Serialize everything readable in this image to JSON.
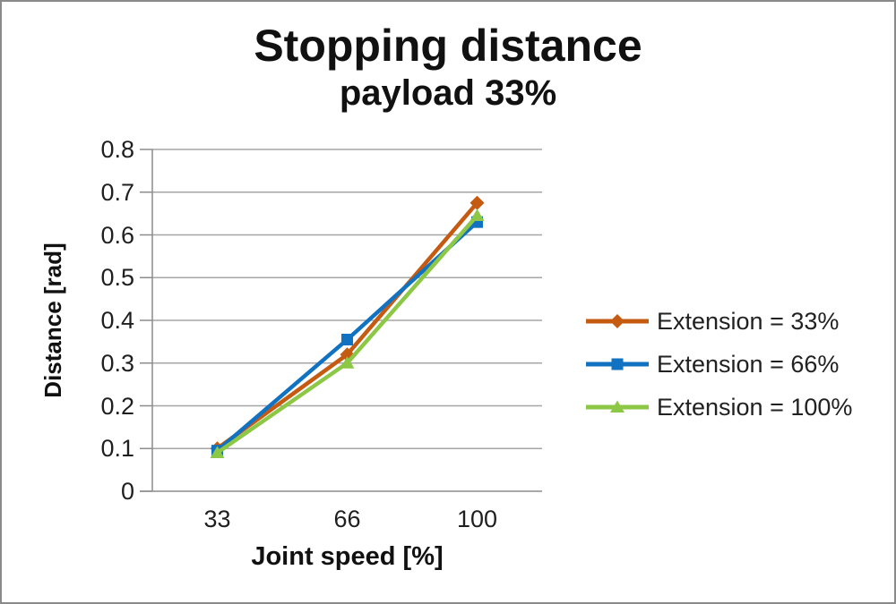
{
  "window": {
    "background": "#ffffff",
    "border_color": "#8a8a8a"
  },
  "chart_data": {
    "type": "line",
    "title": "Stopping distance",
    "subtitle": "payload 33%",
    "xlabel": "Joint speed [%]",
    "ylabel": "Distance [rad]",
    "categories": [
      33,
      66,
      100
    ],
    "x_tick_labels": [
      "33",
      "66",
      "100"
    ],
    "y_tick_labels": [
      "0",
      "0.1",
      "0.2",
      "0.3",
      "0.4",
      "0.5",
      "0.6",
      "0.7",
      "0.8"
    ],
    "ylim": [
      0,
      0.8
    ],
    "y_step": 0.1,
    "grid": "horizontal-only",
    "legend_position": "right",
    "series": [
      {
        "name": "Extension = 33%",
        "marker": "diamond",
        "color": "#c55a11",
        "values": [
          0.1,
          0.32,
          0.675
        ]
      },
      {
        "name": "Extension = 66%",
        "marker": "square",
        "color": "#1272c2",
        "values": [
          0.095,
          0.355,
          0.63
        ]
      },
      {
        "name": "Extension = 100%",
        "marker": "triangle",
        "color": "#8cc846",
        "values": [
          0.09,
          0.3,
          0.645
        ]
      }
    ],
    "colors": {
      "gridline": "#a6a6a6",
      "axis": "#8c8c8c",
      "text": "#1f1f1f",
      "title_text": "#111111"
    }
  }
}
